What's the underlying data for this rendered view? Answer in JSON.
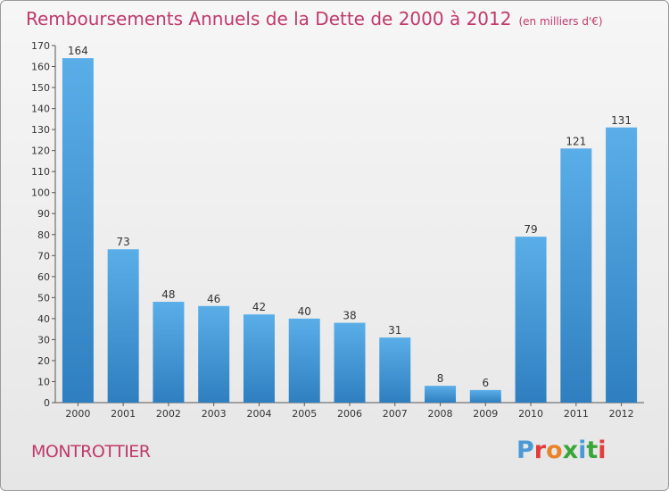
{
  "header": {
    "title": "Remboursements Annuels de la Dette de 2000 à 2012",
    "unit": "(en milliers d'€)"
  },
  "footer": {
    "commune": "MONTROTTIER",
    "logo": "Proxiti"
  },
  "colors": {
    "title": "#c0396a",
    "bar_top": "#5aaee8",
    "bar_bottom": "#2f7fc0"
  },
  "chart_data": {
    "type": "bar",
    "title": "Remboursements Annuels de la Dette de 2000 à 2012",
    "xlabel": "",
    "ylabel": "",
    "categories": [
      "2000",
      "2001",
      "2002",
      "2003",
      "2004",
      "2005",
      "2006",
      "2007",
      "2008",
      "2009",
      "2010",
      "2011",
      "2012"
    ],
    "values": [
      164,
      73,
      48,
      46,
      42,
      40,
      38,
      31,
      8,
      6,
      79,
      121,
      131
    ],
    "ylim": [
      0,
      170
    ],
    "yticks": [
      0,
      10,
      20,
      30,
      40,
      50,
      60,
      70,
      80,
      90,
      100,
      110,
      120,
      130,
      140,
      150,
      160,
      170
    ],
    "grid": false,
    "legend": "none"
  }
}
